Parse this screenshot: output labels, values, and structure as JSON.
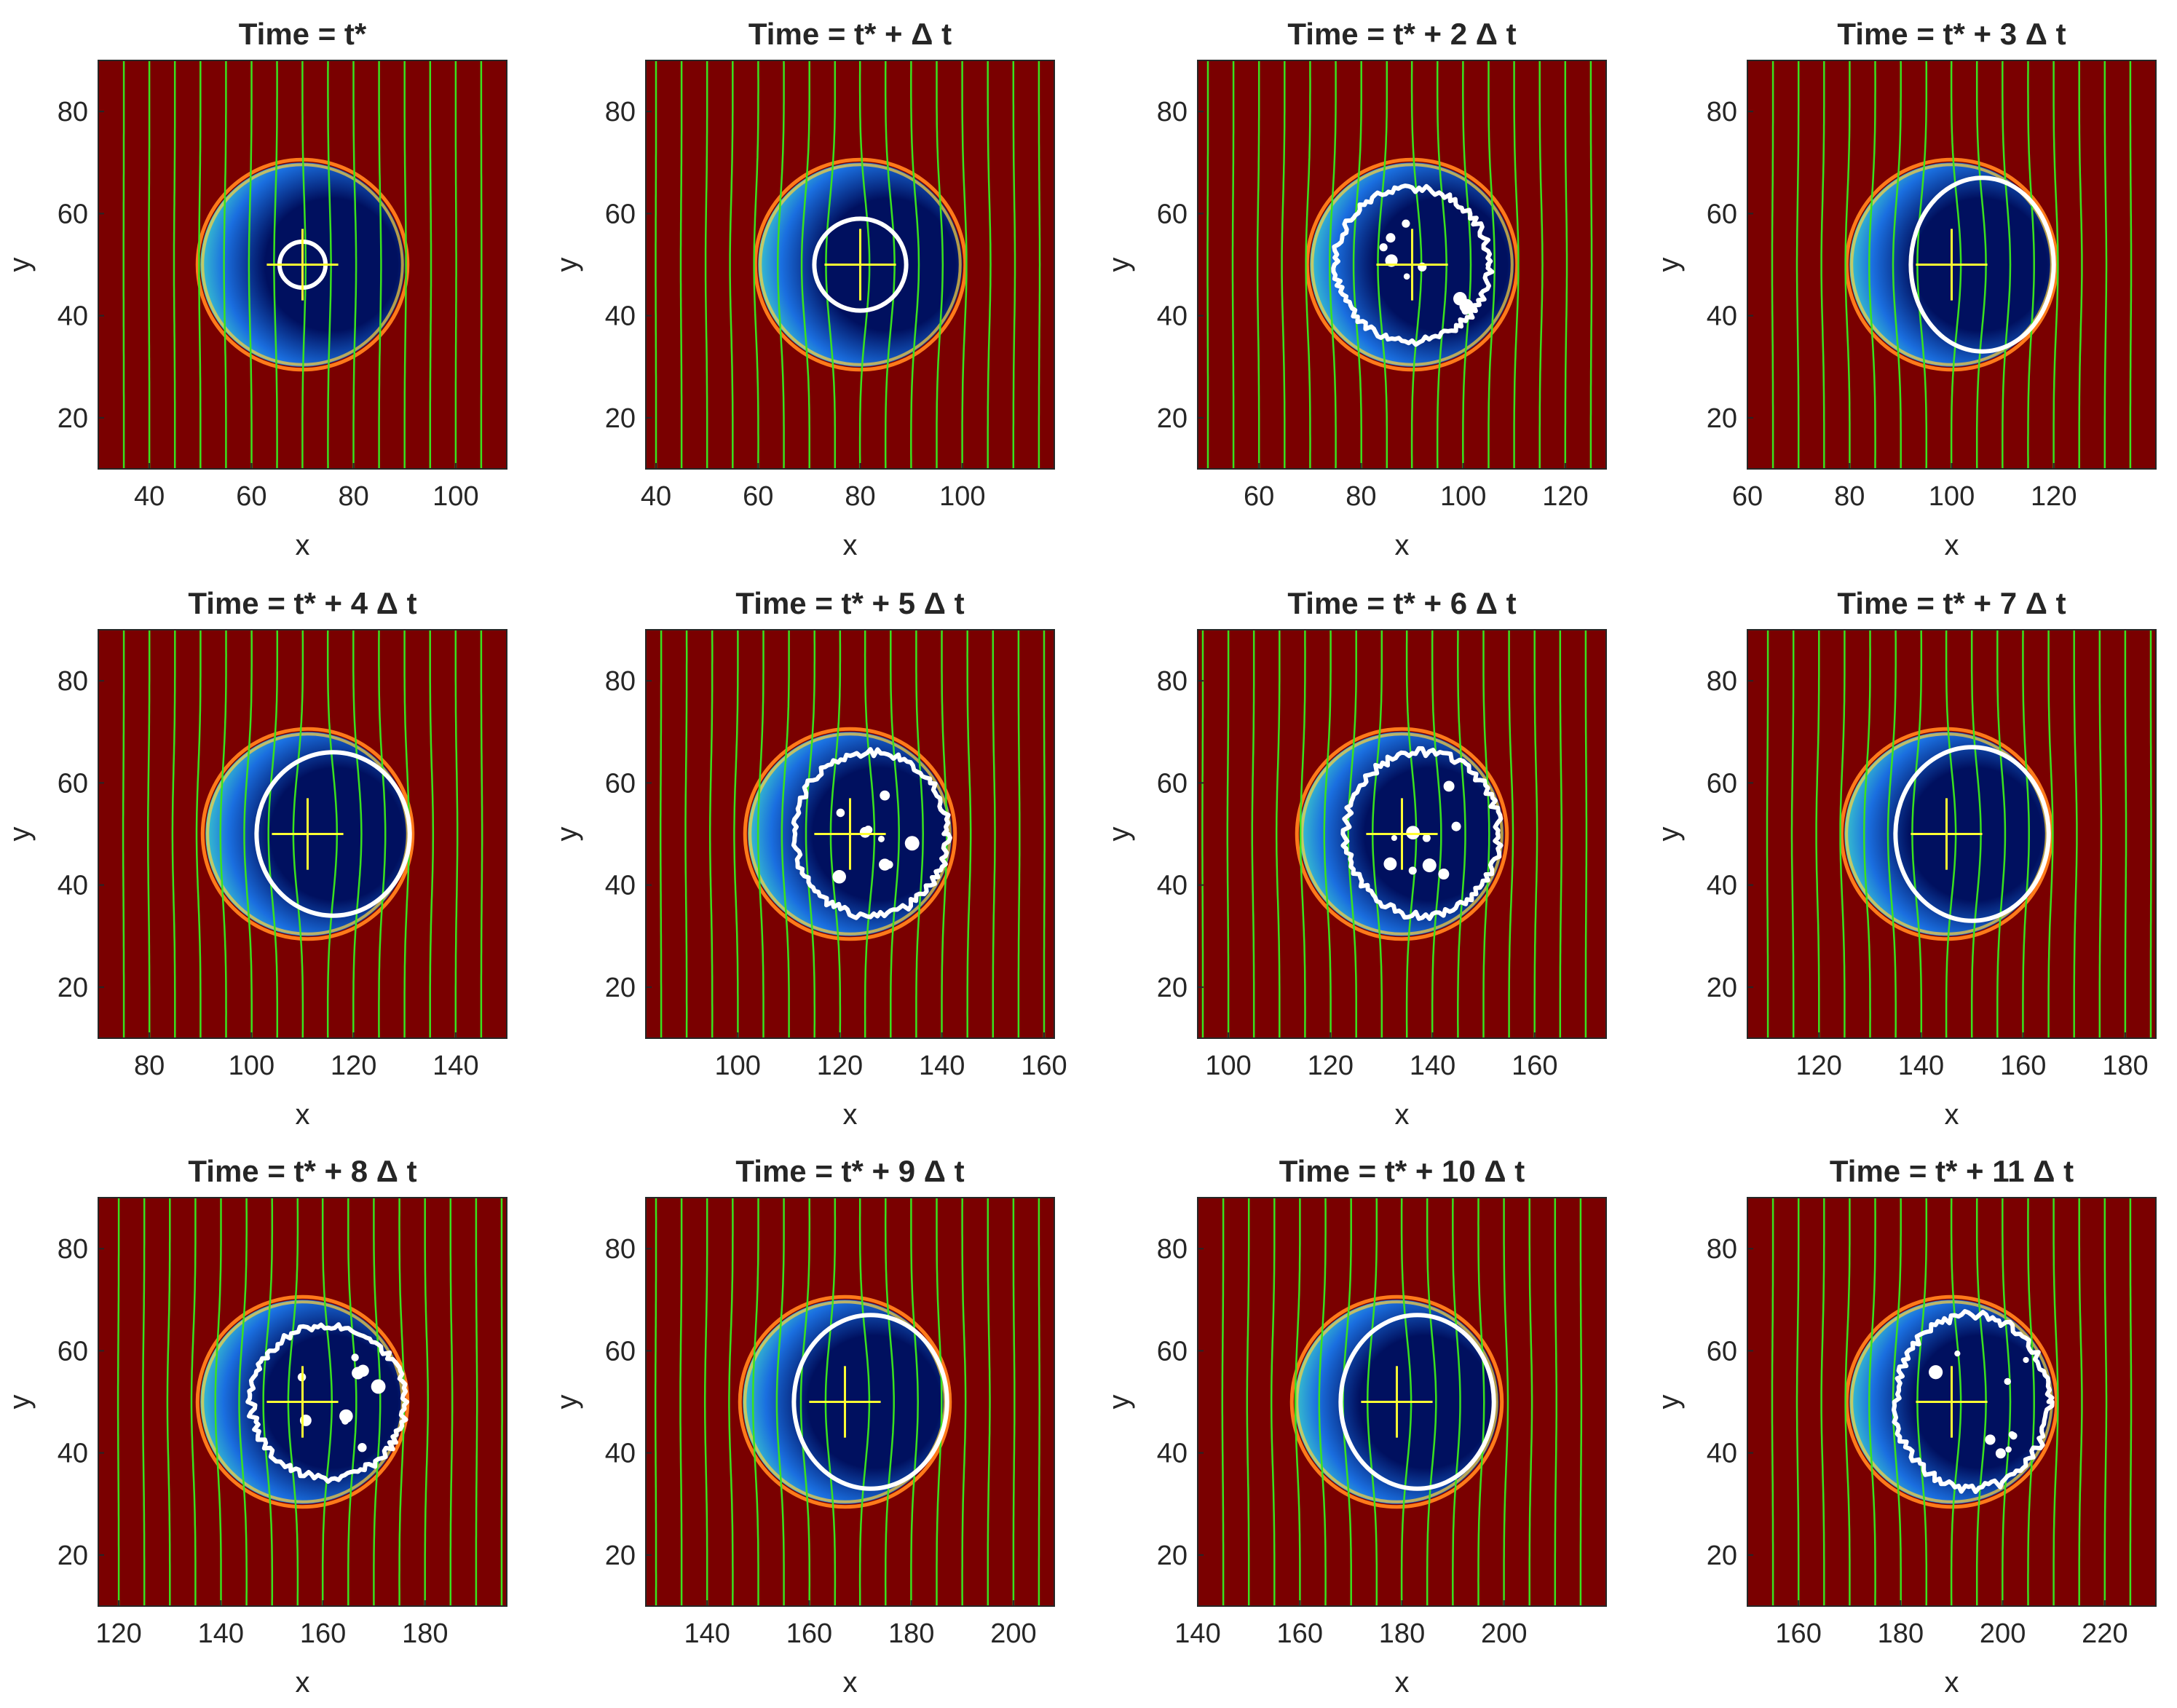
{
  "chart_data": [
    {
      "type": "heatmap",
      "title": "Time = t*",
      "xlabel": "x",
      "ylabel": "y",
      "xlim": [
        30,
        110
      ],
      "ylim": [
        10,
        90
      ],
      "x_ticks": [
        "40",
        "60",
        "80",
        "100"
      ],
      "y_ticks": [
        "20",
        "40",
        "60",
        "80"
      ],
      "particle": {
        "cx": 70,
        "cy": 50,
        "r": 20
      },
      "interface_contour": {
        "cx": 70,
        "cy": 50,
        "rx": 4.5,
        "ry": 4.5,
        "irregular": false
      },
      "cross_center": [
        70,
        50
      ]
    },
    {
      "type": "heatmap",
      "title": "Time = t* + Δ t",
      "xlabel": "x",
      "ylabel": "y",
      "xlim": [
        38,
        118
      ],
      "ylim": [
        10,
        90
      ],
      "x_ticks": [
        "40",
        "60",
        "80",
        "100"
      ],
      "y_ticks": [
        "20",
        "40",
        "60",
        "80"
      ],
      "particle": {
        "cx": 80,
        "cy": 50,
        "r": 20
      },
      "interface_contour": {
        "cx": 80,
        "cy": 50,
        "rx": 9,
        "ry": 9,
        "irregular": false
      },
      "cross_center": [
        80,
        50
      ]
    },
    {
      "type": "heatmap",
      "title": "Time = t* + 2 Δ t",
      "xlabel": "x",
      "ylabel": "y",
      "xlim": [
        48,
        128
      ],
      "ylim": [
        10,
        90
      ],
      "x_ticks": [
        "60",
        "80",
        "100",
        "120"
      ],
      "y_ticks": [
        "20",
        "40",
        "60",
        "80"
      ],
      "particle": {
        "cx": 90,
        "cy": 50,
        "r": 20
      },
      "interface_contour": {
        "cx": 90,
        "cy": 50,
        "rx": 15,
        "ry": 15,
        "irregular": true
      },
      "cross_center": [
        90,
        50
      ]
    },
    {
      "type": "heatmap",
      "title": "Time = t* + 3 Δ t",
      "xlabel": "x",
      "ylabel": "y",
      "xlim": [
        60,
        140
      ],
      "ylim": [
        10,
        90
      ],
      "x_ticks": [
        "60",
        "80",
        "100",
        "120"
      ],
      "y_ticks": [
        "20",
        "40",
        "60",
        "80"
      ],
      "particle": {
        "cx": 100,
        "cy": 50,
        "r": 20
      },
      "interface_contour": {
        "cx": 106,
        "cy": 50,
        "rx": 14,
        "ry": 17,
        "irregular": false
      },
      "cross_center": [
        100,
        50
      ]
    },
    {
      "type": "heatmap",
      "title": "Time = t* + 4 Δ t",
      "xlabel": "x",
      "ylabel": "y",
      "xlim": [
        70,
        150
      ],
      "ylim": [
        10,
        90
      ],
      "x_ticks": [
        "80",
        "100",
        "120",
        "140"
      ],
      "y_ticks": [
        "20",
        "40",
        "60",
        "80"
      ],
      "particle": {
        "cx": 111,
        "cy": 50,
        "r": 20
      },
      "interface_contour": {
        "cx": 116,
        "cy": 50,
        "rx": 15,
        "ry": 16,
        "irregular": false
      },
      "cross_center": [
        111,
        50
      ]
    },
    {
      "type": "heatmap",
      "title": "Time = t* + 5 Δ t",
      "xlabel": "x",
      "ylabel": "y",
      "xlim": [
        82,
        162
      ],
      "ylim": [
        10,
        90
      ],
      "x_ticks": [
        "100",
        "120",
        "140",
        "160"
      ],
      "y_ticks": [
        "20",
        "40",
        "60",
        "80"
      ],
      "particle": {
        "cx": 122,
        "cy": 50,
        "r": 20
      },
      "interface_contour": {
        "cx": 126,
        "cy": 50,
        "rx": 15,
        "ry": 16,
        "irregular": true
      },
      "cross_center": [
        122,
        50
      ]
    },
    {
      "type": "heatmap",
      "title": "Time = t* + 6 Δ t",
      "xlabel": "x",
      "ylabel": "y",
      "xlim": [
        94,
        174
      ],
      "ylim": [
        10,
        90
      ],
      "x_ticks": [
        "100",
        "120",
        "140",
        "160"
      ],
      "y_ticks": [
        "20",
        "40",
        "60",
        "80"
      ],
      "particle": {
        "cx": 134,
        "cy": 50,
        "r": 20
      },
      "interface_contour": {
        "cx": 138,
        "cy": 50,
        "rx": 15,
        "ry": 16,
        "irregular": true
      },
      "cross_center": [
        134,
        50
      ]
    },
    {
      "type": "heatmap",
      "title": "Time = t* + 7 Δ t",
      "xlabel": "x",
      "ylabel": "y",
      "xlim": [
        106,
        186
      ],
      "ylim": [
        10,
        90
      ],
      "x_ticks": [
        "120",
        "140",
        "160",
        "180"
      ],
      "y_ticks": [
        "20",
        "40",
        "60",
        "80"
      ],
      "particle": {
        "cx": 145,
        "cy": 50,
        "r": 20
      },
      "interface_contour": {
        "cx": 150,
        "cy": 50,
        "rx": 15,
        "ry": 17,
        "irregular": false
      },
      "cross_center": [
        145,
        50
      ]
    },
    {
      "type": "heatmap",
      "title": "Time = t* + 8 Δ t",
      "xlabel": "x",
      "ylabel": "y",
      "xlim": [
        116,
        196
      ],
      "ylim": [
        10,
        90
      ],
      "x_ticks": [
        "120",
        "140",
        "160",
        "180"
      ],
      "y_ticks": [
        "20",
        "40",
        "60",
        "80"
      ],
      "particle": {
        "cx": 156,
        "cy": 50,
        "r": 20
      },
      "interface_contour": {
        "cx": 161,
        "cy": 50,
        "rx": 15,
        "ry": 15,
        "irregular": true
      },
      "cross_center": [
        156,
        50
      ]
    },
    {
      "type": "heatmap",
      "title": "Time = t* + 9 Δ t",
      "xlabel": "x",
      "ylabel": "y",
      "xlim": [
        128,
        208
      ],
      "ylim": [
        10,
        90
      ],
      "x_ticks": [
        "140",
        "160",
        "180",
        "200"
      ],
      "y_ticks": [
        "20",
        "40",
        "60",
        "80"
      ],
      "particle": {
        "cx": 167,
        "cy": 50,
        "r": 20
      },
      "interface_contour": {
        "cx": 172,
        "cy": 50,
        "rx": 15,
        "ry": 17,
        "irregular": false
      },
      "cross_center": [
        167,
        50
      ]
    },
    {
      "type": "heatmap",
      "title": "Time = t* + 10 Δ t",
      "xlabel": "x",
      "ylabel": "y",
      "xlim": [
        140,
        220
      ],
      "ylim": [
        10,
        90
      ],
      "x_ticks": [
        "140",
        "160",
        "180",
        "200"
      ],
      "y_ticks": [
        "20",
        "40",
        "60",
        "80"
      ],
      "particle": {
        "cx": 179,
        "cy": 50,
        "r": 20
      },
      "interface_contour": {
        "cx": 183,
        "cy": 50,
        "rx": 15,
        "ry": 17,
        "irregular": false
      },
      "cross_center": [
        179,
        50
      ]
    },
    {
      "type": "heatmap",
      "title": "Time = t* + 11 Δ t",
      "xlabel": "x",
      "ylabel": "y",
      "xlim": [
        150,
        230
      ],
      "ylim": [
        10,
        90
      ],
      "x_ticks": [
        "160",
        "180",
        "200",
        "220"
      ],
      "y_ticks": [
        "20",
        "40",
        "60",
        "80"
      ],
      "particle": {
        "cx": 190,
        "cy": 50,
        "r": 20
      },
      "interface_contour": {
        "cx": 194,
        "cy": 50,
        "rx": 15,
        "ry": 17,
        "irregular": true
      },
      "cross_center": [
        190,
        50
      ]
    }
  ],
  "colors": {
    "background_field": "#7a0000",
    "particle_core": "#00105f",
    "particle_mid": "#1a6fe0",
    "particle_edge": "#3fd4c8",
    "rim_yellow": "#ffd23a",
    "streamlines": "#39e21e",
    "interface_contour": "#ffffff",
    "center_cross": "#ffff33"
  }
}
